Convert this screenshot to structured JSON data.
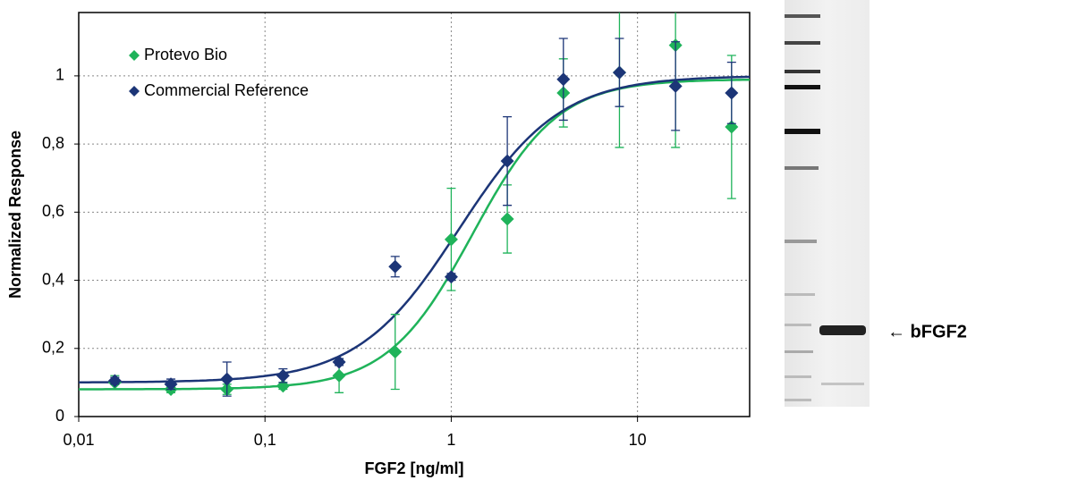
{
  "chart_data": {
    "type": "scatter",
    "xlabel": "FGF2 [ng/ml]",
    "ylabel": "Normalized Response",
    "log_x": true,
    "grid": true,
    "legend": "upper left",
    "xlim": [
      0.01,
      40
    ],
    "xticks": [
      {
        "value": 0.01,
        "label": "0,01"
      },
      {
        "value": 0.1,
        "label": "0,1"
      },
      1,
      10
    ],
    "ylim": [
      0,
      1.186
    ],
    "yticks": [
      0,
      {
        "value": 0.2,
        "label": "0,2"
      },
      {
        "value": 0.4,
        "label": "0,4"
      },
      {
        "value": 0.6,
        "label": "0,6"
      },
      {
        "value": 0.8,
        "label": "0,8"
      },
      1
    ],
    "x": [
      0.015625,
      0.03125,
      0.0625,
      0.125,
      0.25,
      0.5,
      1,
      2,
      4,
      8,
      16,
      32
    ],
    "series": [
      {
        "name": "Protevo Bio",
        "color": "#1fb35a",
        "values": [
          0.1,
          0.08,
          0.08,
          0.09,
          0.12,
          0.19,
          0.52,
          0.58,
          0.95,
          1.01,
          1.09,
          0.85
        ],
        "errors": [
          0.02,
          0.01,
          0.015,
          0.01,
          0.05,
          0.11,
          0.15,
          0.1,
          0.1,
          0.22,
          0.3,
          0.21
        ],
        "fit": {
          "bottom": 0.08,
          "top": 0.99,
          "ec50": 1.3,
          "hill": 1.9
        }
      },
      {
        "name": "Commercial Reference",
        "color": "#1c3577",
        "values": [
          0.105,
          0.095,
          0.11,
          0.12,
          0.16,
          0.44,
          0.41,
          0.75,
          0.99,
          1.01,
          0.97,
          0.95
        ],
        "errors": [
          0.01,
          0.015,
          0.05,
          0.02,
          0.01,
          0.03,
          0.01,
          0.13,
          0.12,
          0.1,
          0.13,
          0.09
        ],
        "fit": {
          "bottom": 0.1,
          "top": 1.0,
          "ec50": 1.1,
          "hill": 1.6
        }
      }
    ]
  },
  "gel": {
    "label": "← bFGF2"
  }
}
